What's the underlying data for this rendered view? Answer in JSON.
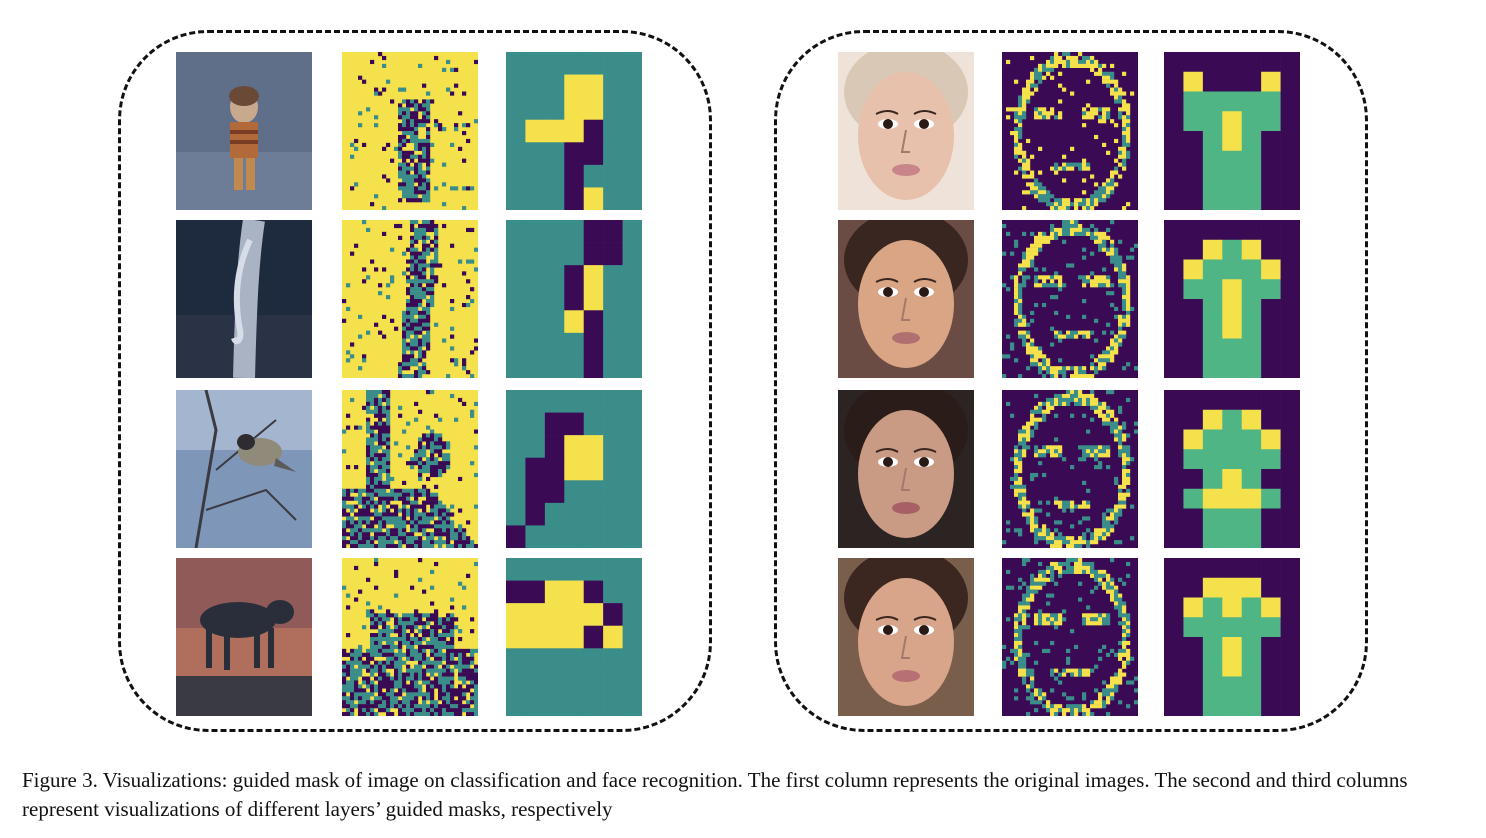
{
  "figure": {
    "caption": "Figure 3. Visualizations: guided mask of image on classification and face recognition. The first column represents the original images. The second and third columns represent visualizations of different layers’ guided masks, respectively"
  },
  "colors": {
    "mask_yellow": "#f5e14c",
    "mask_teal": "#3b8d8a",
    "mask_purple": "#3a0a55",
    "mask_green": "#4fb584",
    "frame": "#111111"
  },
  "panels": [
    {
      "name": "classification",
      "rows": [
        {
          "image": "child-photo",
          "coarse_mask": [
            "TTTTTTT",
            "TTTYYTT",
            "TTTYYTT",
            "TYYYPTT",
            "TTTPPTT",
            "TTTPTTT",
            "TTTPYTT"
          ]
        },
        {
          "image": "lizard-on-tree-photo",
          "coarse_mask": [
            "TTTTPPT",
            "TTTTPPT",
            "TTTPYTT",
            "TTTPYTT",
            "TTTYPTT",
            "TTTTPTT",
            "TTTTPTT"
          ]
        },
        {
          "image": "bird-on-branch-photo",
          "coarse_mask": [
            "TTTTTTT",
            "TTPPTTT",
            "TTPYYTT",
            "TPPYYTT",
            "TPPTTTT",
            "TPTTTTT",
            "PTTTTTT"
          ]
        },
        {
          "image": "hyena-photo",
          "coarse_mask": [
            "TTTTTTT",
            "PPYYPTT",
            "YYYYYPT",
            "YYYYPYT",
            "TTTTTTT",
            "TTTTTTT",
            "TTTTTTT"
          ]
        }
      ]
    },
    {
      "name": "face-recognition",
      "rows": [
        {
          "image": "face-photo-1",
          "coarse_mask": [
            "PPPPPPP",
            "PYPPPYP",
            "PGGGGGP",
            "PGGYGGP",
            "PPGYGPP",
            "PPGGGPP",
            "PPGGGPP",
            "PPGGGPP"
          ]
        },
        {
          "image": "face-photo-2",
          "coarse_mask": [
            "PPPPPPP",
            "PPYGYPP",
            "PYGGGYP",
            "PGGYGGP",
            "PPGYGPP",
            "PPGYGPP",
            "PPGGGPP",
            "PPGGGPP"
          ]
        },
        {
          "image": "face-photo-3",
          "coarse_mask": [
            "PPPPPPP",
            "PPYGYPP",
            "PYGGGYP",
            "PGGGGGP",
            "PPGYGPP",
            "PGYYYGP",
            "PPGGGPP",
            "PPGGGPP"
          ]
        },
        {
          "image": "face-photo-4",
          "coarse_mask": [
            "PPPPPPP",
            "PPYYYPP",
            "PYGYGYP",
            "PGGGGGP",
            "PPGYGPP",
            "PPGYGPP",
            "PPGGGPP",
            "PPGGGPP"
          ]
        }
      ]
    }
  ]
}
